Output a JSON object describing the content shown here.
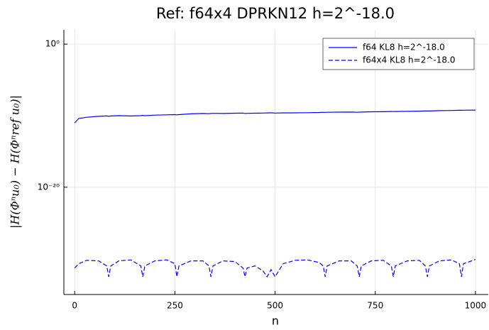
{
  "chart_data": {
    "type": "line",
    "title": "Ref: f64x4 DPRKN12 h=2^-18.0",
    "xlabel": "n",
    "ylabel": "|H(Φⁿu₀) − H(Φⁿref u₀)|",
    "log_y": true,
    "grid": true,
    "legend": "top-right",
    "xlim": [
      -27,
      1032
    ],
    "ylim": [
      1e-35,
      100
    ],
    "xticks": [
      0,
      250,
      500,
      750,
      1000
    ],
    "yticks": [
      {
        "value": 1,
        "label": "10⁰"
      },
      {
        "value": 1e-20,
        "label": "10⁻²⁰"
      }
    ],
    "x": [
      0,
      10,
      30,
      60,
      80,
      85,
      90,
      110,
      140,
      165,
      170,
      175,
      200,
      230,
      250,
      255,
      260,
      290,
      320,
      335,
      340,
      345,
      370,
      400,
      420,
      425,
      430,
      450,
      470,
      480,
      490,
      500,
      520,
      550,
      580,
      610,
      620,
      625,
      630,
      660,
      690,
      705,
      710,
      715,
      740,
      770,
      790,
      795,
      800,
      830,
      860,
      875,
      880,
      885,
      910,
      940,
      960,
      965,
      970,
      1000
    ],
    "series": [
      {
        "name": "f64 KL8 h=2^-18.0",
        "color": "#0000ff",
        "dash": false,
        "values": [
          1e-11,
          4e-11,
          6e-11,
          8e-11,
          9e-11,
          8e-11,
          9e-11,
          1e-10,
          9e-11,
          1e-10,
          1.1e-10,
          1e-10,
          1.2e-10,
          1.3e-10,
          1.4e-10,
          1.3e-10,
          1.4e-10,
          1.8e-10,
          2e-10,
          1.9e-10,
          2e-10,
          2.1e-10,
          2e-10,
          2.2e-10,
          2.3e-10,
          2e-10,
          2.1e-10,
          2.2e-10,
          2.3e-10,
          2.4e-10,
          2.5e-10,
          2.3e-10,
          2.4e-10,
          2.5e-10,
          2.6e-10,
          2.8e-10,
          3e-10,
          2.9e-10,
          3e-10,
          3.1e-10,
          3.2e-10,
          3e-10,
          3.1e-10,
          3.2e-10,
          3.5e-10,
          3.6e-10,
          3.8e-10,
          3.7e-10,
          3.8e-10,
          4e-10,
          4.3e-10,
          4.5e-10,
          4.6e-10,
          4.5e-10,
          5e-10,
          5.3e-10,
          5.6e-10,
          5.7e-10,
          5.8e-10,
          6e-10
        ]
      },
      {
        "name": "f64x4 KL8 h=2^-18.0",
        "color": "#0000ff",
        "dash": true,
        "values": [
          5e-32,
          2e-31,
          6e-31,
          5e-31,
          1e-31,
          3e-33,
          1e-31,
          5e-31,
          7e-31,
          1e-31,
          3e-33,
          1e-31,
          5e-31,
          7e-31,
          2e-31,
          3e-33,
          1e-31,
          5e-31,
          5e-31,
          1e-31,
          3e-33,
          1e-31,
          5e-31,
          4e-31,
          5e-32,
          3e-33,
          5e-32,
          1e-31,
          2e-32,
          3e-33,
          3e-32,
          3e-33,
          2e-31,
          6e-31,
          7e-31,
          3e-31,
          1e-31,
          3e-33,
          1e-31,
          5e-31,
          5e-31,
          1e-31,
          3e-33,
          1e-31,
          5e-31,
          6e-31,
          1e-31,
          3e-33,
          1e-31,
          5e-31,
          6e-31,
          1e-31,
          3e-33,
          1e-31,
          5e-31,
          7e-31,
          2e-31,
          3e-33,
          2e-31,
          8e-31
        ]
      }
    ]
  }
}
